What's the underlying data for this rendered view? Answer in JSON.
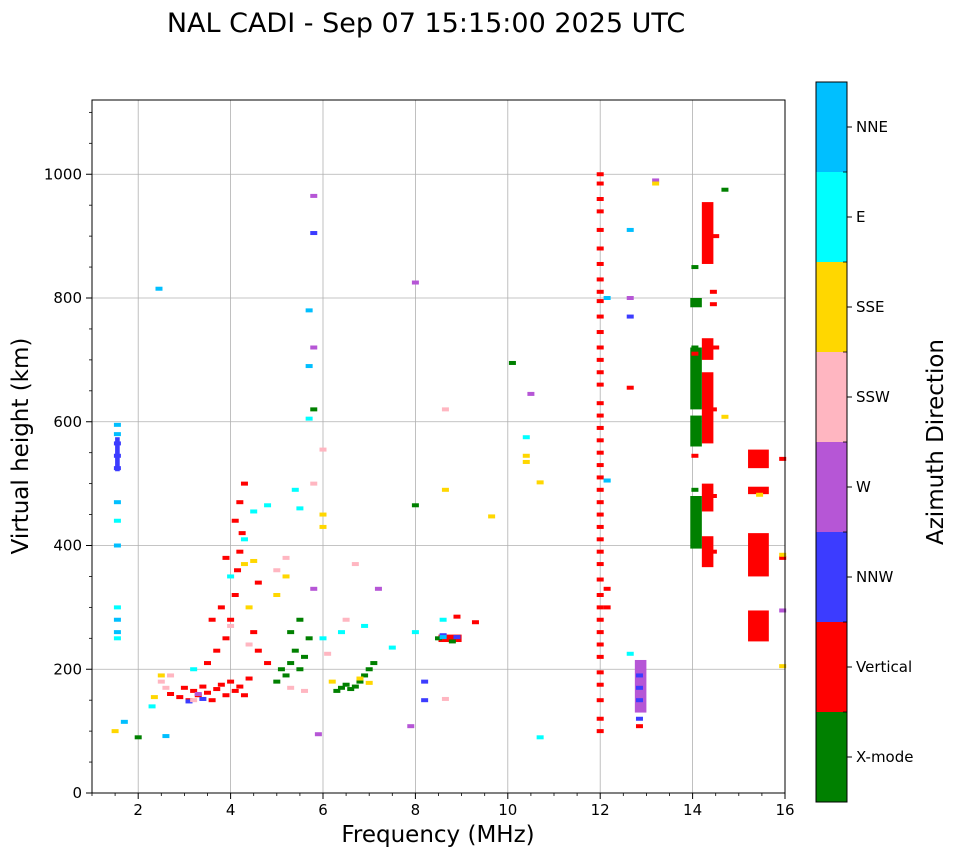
{
  "chart_data": {
    "type": "scatter",
    "title": "NAL CADI - Sep 07 15:15:00 2025 UTC",
    "xlabel": "Frequency (MHz)",
    "ylabel": "Virtual height (km)",
    "xlim": [
      1,
      16
    ],
    "ylim": [
      0,
      1120
    ],
    "xticks": [
      2,
      4,
      6,
      8,
      10,
      12,
      14,
      16
    ],
    "yticks": [
      0,
      200,
      400,
      600,
      800,
      1000
    ],
    "grid": true,
    "colorbar": {
      "label": "Azimuth Direction",
      "entries": [
        {
          "name": "X-mode",
          "color": "#008000"
        },
        {
          "name": "Vertical",
          "color": "#ff0000"
        },
        {
          "name": "NNW",
          "color": "#3c3cff"
        },
        {
          "name": "W",
          "color": "#b656d6"
        },
        {
          "name": "SSW",
          "color": "#ffb6c1"
        },
        {
          "name": "SSE",
          "color": "#ffd700"
        },
        {
          "name": "E",
          "color": "#00ffff"
        },
        {
          "name": "NNE",
          "color": "#00bfff"
        }
      ]
    },
    "series": [
      {
        "name": "Vertical",
        "points": [
          [
            2.7,
            160
          ],
          [
            2.9,
            155
          ],
          [
            3.0,
            170
          ],
          [
            3.1,
            150
          ],
          [
            3.2,
            165
          ],
          [
            3.3,
            158
          ],
          [
            3.4,
            172
          ],
          [
            3.5,
            162
          ],
          [
            3.6,
            150
          ],
          [
            3.7,
            168
          ],
          [
            3.8,
            175
          ],
          [
            3.9,
            158
          ],
          [
            4.0,
            180
          ],
          [
            4.1,
            165
          ],
          [
            4.2,
            172
          ],
          [
            4.3,
            158
          ],
          [
            4.4,
            185
          ],
          [
            3.5,
            210
          ],
          [
            3.7,
            230
          ],
          [
            3.9,
            250
          ],
          [
            4.0,
            280
          ],
          [
            4.1,
            320
          ],
          [
            4.15,
            360
          ],
          [
            4.2,
            390
          ],
          [
            4.25,
            420
          ],
          [
            3.8,
            300
          ],
          [
            3.6,
            280
          ],
          [
            4.5,
            260
          ],
          [
            4.6,
            230
          ],
          [
            4.8,
            210
          ],
          [
            4.3,
            500
          ],
          [
            4.2,
            470
          ],
          [
            4.1,
            440
          ],
          [
            3.9,
            380
          ],
          [
            4.6,
            340
          ],
          [
            12.0,
            1000
          ],
          [
            12.0,
            985
          ],
          [
            12.0,
            960
          ],
          [
            12.0,
            940
          ],
          [
            12.0,
            910
          ],
          [
            12.0,
            880
          ],
          [
            12.0,
            855
          ],
          [
            12.0,
            830
          ],
          [
            12.0,
            810
          ],
          [
            12.0,
            795
          ],
          [
            12.0,
            770
          ],
          [
            12.0,
            745
          ],
          [
            12.0,
            720
          ],
          [
            12.0,
            700
          ],
          [
            12.0,
            680
          ],
          [
            12.0,
            660
          ],
          [
            12.0,
            630
          ],
          [
            12.0,
            610
          ],
          [
            12.0,
            590
          ],
          [
            12.0,
            570
          ],
          [
            12.0,
            550
          ],
          [
            12.0,
            530
          ],
          [
            12.0,
            510
          ],
          [
            12.0,
            490
          ],
          [
            12.0,
            470
          ],
          [
            12.0,
            450
          ],
          [
            12.0,
            430
          ],
          [
            12.0,
            410
          ],
          [
            12.0,
            390
          ],
          [
            12.0,
            370
          ],
          [
            12.0,
            345
          ],
          [
            12.0,
            320
          ],
          [
            12.0,
            300
          ],
          [
            12.0,
            280
          ],
          [
            12.0,
            260
          ],
          [
            12.0,
            240
          ],
          [
            12.0,
            220
          ],
          [
            12.0,
            195
          ],
          [
            12.0,
            175
          ],
          [
            12.0,
            150
          ],
          [
            12.0,
            120
          ],
          [
            12.0,
            100
          ],
          [
            12.15,
            330
          ],
          [
            12.15,
            300
          ],
          [
            12.65,
            655
          ],
          [
            12.85,
            108
          ],
          [
            14.05,
            545
          ],
          [
            14.05,
            710
          ],
          [
            14.45,
            790
          ],
          [
            14.45,
            810
          ],
          [
            14.5,
            900
          ],
          [
            14.45,
            480
          ],
          [
            14.45,
            390
          ],
          [
            14.5,
            720
          ],
          [
            14.45,
            620
          ],
          [
            15.45,
            540
          ],
          [
            15.45,
            490
          ],
          [
            15.45,
            380
          ],
          [
            15.45,
            270
          ],
          [
            15.95,
            540
          ],
          [
            15.95,
            380
          ],
          [
            9.3,
            276
          ],
          [
            8.8,
            248
          ],
          [
            8.9,
            285
          ]
        ]
      },
      {
        "name": "X-mode",
        "points": [
          [
            5.0,
            180
          ],
          [
            5.1,
            200
          ],
          [
            5.2,
            190
          ],
          [
            5.3,
            210
          ],
          [
            5.4,
            230
          ],
          [
            5.5,
            200
          ],
          [
            5.6,
            220
          ],
          [
            6.3,
            165
          ],
          [
            6.4,
            170
          ],
          [
            6.5,
            175
          ],
          [
            6.6,
            168
          ],
          [
            6.7,
            172
          ],
          [
            6.8,
            180
          ],
          [
            6.9,
            190
          ],
          [
            7.0,
            200
          ],
          [
            7.1,
            210
          ],
          [
            5.7,
            250
          ],
          [
            5.5,
            280
          ],
          [
            5.3,
            260
          ],
          [
            5.8,
            620
          ],
          [
            14.05,
            400
          ],
          [
            14.05,
            430
          ],
          [
            14.05,
            460
          ],
          [
            14.05,
            490
          ],
          [
            14.05,
            575
          ],
          [
            14.05,
            600
          ],
          [
            14.05,
            640
          ],
          [
            14.05,
            680
          ],
          [
            14.05,
            700
          ],
          [
            14.05,
            720
          ],
          [
            14.05,
            790
          ],
          [
            14.05,
            850
          ],
          [
            14.7,
            975
          ],
          [
            10.1,
            695
          ],
          [
            8.0,
            465
          ],
          [
            2.0,
            90
          ],
          [
            8.5,
            250
          ],
          [
            8.8,
            245
          ]
        ]
      },
      {
        "name": "NNW",
        "points": [
          [
            1.55,
            525
          ],
          [
            1.55,
            545
          ],
          [
            1.55,
            565
          ],
          [
            12.65,
            770
          ],
          [
            12.85,
            120
          ],
          [
            12.85,
            150
          ],
          [
            12.85,
            170
          ],
          [
            12.85,
            190
          ],
          [
            8.2,
            180
          ],
          [
            8.2,
            150
          ],
          [
            5.8,
            905
          ],
          [
            8.6,
            255
          ],
          [
            8.9,
            252
          ],
          [
            3.1,
            148
          ],
          [
            3.4,
            152
          ]
        ]
      },
      {
        "name": "W",
        "points": [
          [
            5.8,
            965
          ],
          [
            12.65,
            800
          ],
          [
            12.85,
            210
          ],
          [
            12.85,
            200
          ],
          [
            13.2,
            990
          ],
          [
            15.95,
            295
          ],
          [
            10.5,
            645
          ],
          [
            8.0,
            825
          ],
          [
            7.9,
            108
          ],
          [
            5.9,
            95
          ],
          [
            5.8,
            330
          ],
          [
            5.8,
            720
          ],
          [
            7.2,
            330
          ],
          [
            3.3,
            160
          ]
        ]
      },
      {
        "name": "SSW",
        "points": [
          [
            2.5,
            180
          ],
          [
            2.6,
            170
          ],
          [
            2.7,
            190
          ],
          [
            3.2,
            150
          ],
          [
            4.0,
            270
          ],
          [
            4.4,
            240
          ],
          [
            5.0,
            360
          ],
          [
            5.2,
            380
          ],
          [
            5.3,
            170
          ],
          [
            5.6,
            165
          ],
          [
            6.1,
            225
          ],
          [
            6.5,
            280
          ],
          [
            6.7,
            370
          ],
          [
            8.65,
            620
          ],
          [
            8.65,
            152
          ],
          [
            6.0,
            555
          ],
          [
            5.8,
            500
          ]
        ]
      },
      {
        "name": "SSE",
        "points": [
          [
            1.5,
            100
          ],
          [
            2.35,
            155
          ],
          [
            2.5,
            190
          ],
          [
            4.3,
            370
          ],
          [
            4.5,
            375
          ],
          [
            4.4,
            300
          ],
          [
            5.0,
            320
          ],
          [
            5.2,
            350
          ],
          [
            6.0,
            450
          ],
          [
            6.0,
            430
          ],
          [
            6.2,
            180
          ],
          [
            6.8,
            185
          ],
          [
            7.0,
            178
          ],
          [
            8.65,
            490
          ],
          [
            9.65,
            447
          ],
          [
            10.4,
            545
          ],
          [
            10.4,
            535
          ],
          [
            10.7,
            502
          ],
          [
            14.7,
            608
          ],
          [
            15.95,
            205
          ],
          [
            15.95,
            385
          ],
          [
            13.2,
            985
          ],
          [
            15.45,
            482
          ]
        ]
      },
      {
        "name": "E",
        "points": [
          [
            1.55,
            300
          ],
          [
            1.55,
            250
          ],
          [
            1.55,
            440
          ],
          [
            2.3,
            140
          ],
          [
            3.2,
            200
          ],
          [
            4.0,
            350
          ],
          [
            4.3,
            410
          ],
          [
            4.5,
            455
          ],
          [
            4.8,
            465
          ],
          [
            5.4,
            490
          ],
          [
            5.5,
            460
          ],
          [
            6.4,
            260
          ],
          [
            6.9,
            270
          ],
          [
            7.5,
            235
          ],
          [
            8.0,
            260
          ],
          [
            8.6,
            280
          ],
          [
            10.4,
            575
          ],
          [
            10.7,
            90
          ],
          [
            12.65,
            225
          ],
          [
            12.15,
            505
          ],
          [
            5.7,
            605
          ],
          [
            6.0,
            250
          ]
        ]
      },
      {
        "name": "NNE",
        "points": [
          [
            1.55,
            580
          ],
          [
            1.55,
            595
          ],
          [
            1.55,
            470
          ],
          [
            1.55,
            400
          ],
          [
            1.55,
            280
          ],
          [
            1.55,
            260
          ],
          [
            2.45,
            815
          ],
          [
            1.7,
            115
          ],
          [
            12.65,
            910
          ],
          [
            12.15,
            800
          ],
          [
            12.15,
            505
          ],
          [
            5.7,
            780
          ],
          [
            5.7,
            690
          ],
          [
            8.6,
            252
          ],
          [
            2.6,
            92
          ]
        ]
      }
    ],
    "blocks": [
      {
        "color": "Vertical",
        "f0": 14.2,
        "f1": 14.45,
        "h0": 855,
        "h1": 955
      },
      {
        "color": "Vertical",
        "f0": 14.2,
        "f1": 14.45,
        "h0": 700,
        "h1": 735
      },
      {
        "color": "Vertical",
        "f0": 14.2,
        "f1": 14.45,
        "h0": 565,
        "h1": 680
      },
      {
        "color": "Vertical",
        "f0": 14.2,
        "f1": 14.45,
        "h0": 455,
        "h1": 500
      },
      {
        "color": "Vertical",
        "f0": 14.2,
        "f1": 14.45,
        "h0": 365,
        "h1": 415
      },
      {
        "color": "Vertical",
        "f0": 15.2,
        "f1": 15.65,
        "h0": 525,
        "h1": 555
      },
      {
        "color": "Vertical",
        "f0": 15.2,
        "f1": 15.65,
        "h0": 350,
        "h1": 420
      },
      {
        "color": "Vertical",
        "f0": 15.2,
        "f1": 15.65,
        "h0": 245,
        "h1": 295
      },
      {
        "color": "Vertical",
        "f0": 15.2,
        "f1": 15.65,
        "h0": 483,
        "h1": 495
      },
      {
        "color": "X-mode",
        "f0": 13.95,
        "f1": 14.2,
        "h0": 395,
        "h1": 480
      },
      {
        "color": "X-mode",
        "f0": 13.95,
        "f1": 14.2,
        "h0": 560,
        "h1": 610
      },
      {
        "color": "X-mode",
        "f0": 13.95,
        "f1": 14.2,
        "h0": 620,
        "h1": 720
      },
      {
        "color": "X-mode",
        "f0": 13.95,
        "f1": 14.2,
        "h0": 785,
        "h1": 800
      },
      {
        "color": "Vertical",
        "f0": 8.5,
        "f1": 9.0,
        "h0": 244,
        "h1": 256
      },
      {
        "color": "NNW",
        "f0": 1.5,
        "f1": 1.6,
        "h0": 520,
        "h1": 575
      },
      {
        "color": "W",
        "f0": 12.75,
        "f1": 13.0,
        "h0": 130,
        "h1": 215
      }
    ]
  }
}
